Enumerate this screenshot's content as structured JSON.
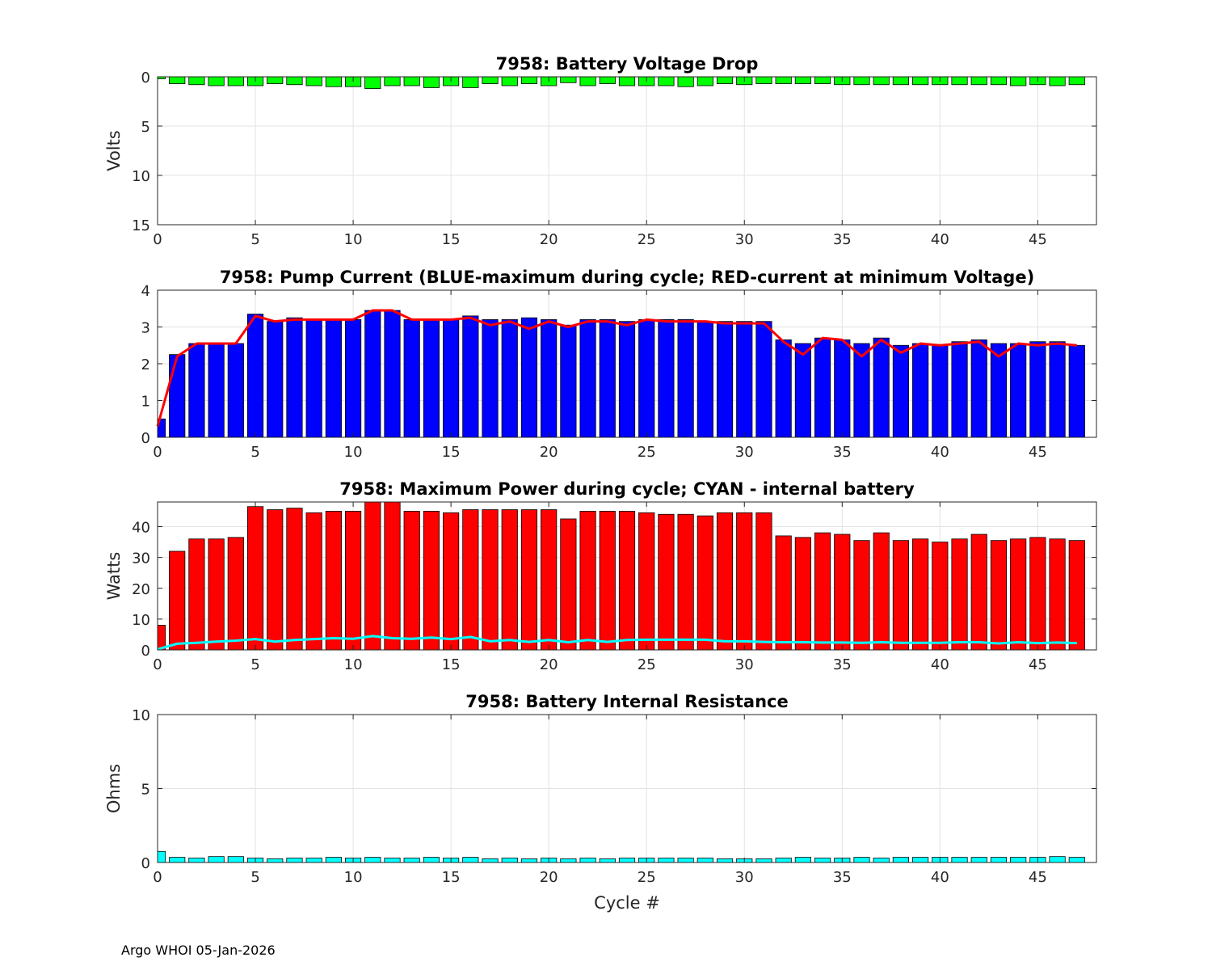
{
  "footer": "Argo WHOI 05-Jan-2026",
  "chart_data": [
    {
      "type": "bar",
      "title": "7958: Battery Voltage Drop",
      "ylabel": "Volts",
      "xlabel": "",
      "xlim": [
        0,
        48
      ],
      "ylim": [
        0,
        15
      ],
      "y_reversed": true,
      "xticks": [
        0,
        5,
        10,
        15,
        20,
        25,
        30,
        35,
        40,
        45
      ],
      "yticks": [
        0,
        5,
        10,
        15
      ],
      "grid": true,
      "bar_color": "#00ff00",
      "x": [
        0,
        1,
        2,
        3,
        4,
        5,
        6,
        7,
        8,
        9,
        10,
        11,
        12,
        13,
        14,
        15,
        16,
        17,
        18,
        19,
        20,
        21,
        22,
        23,
        24,
        25,
        26,
        27,
        28,
        29,
        30,
        31,
        32,
        33,
        34,
        35,
        36,
        37,
        38,
        39,
        40,
        41,
        42,
        43,
        44,
        45,
        46,
        47
      ],
      "values": [
        0.2,
        0.7,
        0.8,
        0.9,
        0.9,
        0.9,
        0.7,
        0.8,
        0.9,
        1.0,
        1.0,
        1.2,
        0.9,
        0.9,
        1.1,
        0.9,
        1.1,
        0.7,
        0.9,
        0.7,
        0.9,
        0.6,
        0.9,
        0.7,
        0.9,
        0.9,
        0.9,
        1.0,
        0.9,
        0.7,
        0.8,
        0.7,
        0.7,
        0.7,
        0.7,
        0.8,
        0.8,
        0.8,
        0.8,
        0.8,
        0.8,
        0.8,
        0.8,
        0.8,
        0.9,
        0.8,
        0.9,
        0.8
      ]
    },
    {
      "type": "bar",
      "title": "7958: Pump Current (BLUE-maximum during cycle; RED-current at minimum Voltage)",
      "ylabel": "",
      "xlabel": "",
      "xlim": [
        0,
        48
      ],
      "ylim": [
        0,
        4
      ],
      "xticks": [
        0,
        5,
        10,
        15,
        20,
        25,
        30,
        35,
        40,
        45
      ],
      "yticks": [
        0,
        1,
        2,
        3,
        4
      ],
      "grid": true,
      "bar_color": "#0000ff",
      "line_color": "#ff0000",
      "x": [
        0,
        1,
        2,
        3,
        4,
        5,
        6,
        7,
        8,
        9,
        10,
        11,
        12,
        13,
        14,
        15,
        16,
        17,
        18,
        19,
        20,
        21,
        22,
        23,
        24,
        25,
        26,
        27,
        28,
        29,
        30,
        31,
        32,
        33,
        34,
        35,
        36,
        37,
        38,
        39,
        40,
        41,
        42,
        43,
        44,
        45,
        46,
        47
      ],
      "series": [
        {
          "name": "BLUE-maximum during cycle",
          "values": [
            0.5,
            2.25,
            2.55,
            2.55,
            2.55,
            3.35,
            3.15,
            3.25,
            3.2,
            3.2,
            3.2,
            3.45,
            3.45,
            3.2,
            3.2,
            3.2,
            3.3,
            3.2,
            3.2,
            3.25,
            3.2,
            3.05,
            3.2,
            3.2,
            3.15,
            3.2,
            3.2,
            3.2,
            3.15,
            3.15,
            3.15,
            3.15,
            2.65,
            2.55,
            2.7,
            2.65,
            2.55,
            2.7,
            2.5,
            2.55,
            2.5,
            2.6,
            2.65,
            2.55,
            2.55,
            2.6,
            2.6,
            2.5
          ]
        },
        {
          "name": "RED-current at minimum Voltage",
          "values": [
            0.3,
            2.2,
            2.55,
            2.55,
            2.55,
            3.3,
            3.15,
            3.2,
            3.2,
            3.2,
            3.2,
            3.45,
            3.45,
            3.2,
            3.2,
            3.2,
            3.25,
            3.05,
            3.15,
            2.95,
            3.15,
            3.0,
            3.15,
            3.15,
            3.05,
            3.2,
            3.15,
            3.15,
            3.15,
            3.1,
            3.1,
            3.1,
            2.6,
            2.25,
            2.7,
            2.65,
            2.2,
            2.65,
            2.3,
            2.55,
            2.5,
            2.55,
            2.6,
            2.2,
            2.55,
            2.5,
            2.55,
            2.5
          ]
        }
      ]
    },
    {
      "type": "bar",
      "title": "7958: Maximum Power during cycle; CYAN - internal battery",
      "ylabel": "Watts",
      "xlabel": "",
      "xlim": [
        0,
        48
      ],
      "ylim": [
        0,
        48
      ],
      "xticks": [
        0,
        5,
        10,
        15,
        20,
        25,
        30,
        35,
        40,
        45
      ],
      "yticks": [
        0,
        10,
        20,
        30,
        40
      ],
      "grid": true,
      "bar_color": "#ff0000",
      "line_color": "#00ffff",
      "x": [
        0,
        1,
        2,
        3,
        4,
        5,
        6,
        7,
        8,
        9,
        10,
        11,
        12,
        13,
        14,
        15,
        16,
        17,
        18,
        19,
        20,
        21,
        22,
        23,
        24,
        25,
        26,
        27,
        28,
        29,
        30,
        31,
        32,
        33,
        34,
        35,
        36,
        37,
        38,
        39,
        40,
        41,
        42,
        43,
        44,
        45,
        46,
        47
      ],
      "series": [
        {
          "name": "Maximum Power during cycle",
          "values": [
            8,
            32,
            36,
            36,
            36.5,
            46.5,
            45.5,
            46,
            44.5,
            45,
            45,
            48,
            48,
            45,
            45,
            44.5,
            45.5,
            45.5,
            45.5,
            45.5,
            45.5,
            42.5,
            45,
            45,
            45,
            44.5,
            44,
            44,
            43.5,
            44.5,
            44.5,
            44.5,
            37,
            36.5,
            38,
            37.5,
            35.5,
            38,
            35.5,
            36,
            35,
            36,
            37.5,
            35.5,
            36,
            36.5,
            36,
            35.5
          ]
        },
        {
          "name": "CYAN - internal battery",
          "values": [
            0.2,
            2.0,
            2.3,
            2.7,
            3.0,
            3.5,
            2.7,
            3.2,
            3.5,
            3.8,
            3.6,
            4.5,
            3.8,
            3.6,
            4.0,
            3.5,
            4.2,
            2.8,
            3.2,
            2.6,
            3.2,
            2.5,
            3.2,
            2.6,
            3.2,
            3.3,
            3.3,
            3.3,
            3.3,
            2.8,
            2.8,
            2.6,
            2.5,
            2.5,
            2.4,
            2.4,
            2.3,
            2.5,
            2.3,
            2.3,
            2.3,
            2.5,
            2.5,
            2.1,
            2.5,
            2.2,
            2.4,
            2.2
          ]
        }
      ]
    },
    {
      "type": "bar",
      "title": "7958: Battery Internal Resistance",
      "ylabel": "Ohms",
      "xlabel": "Cycle #",
      "xlim": [
        0,
        48
      ],
      "ylim": [
        0,
        10
      ],
      "xticks": [
        0,
        5,
        10,
        15,
        20,
        25,
        30,
        35,
        40,
        45
      ],
      "yticks": [
        0,
        5,
        10
      ],
      "grid": true,
      "bar_color": "#00ffff",
      "x": [
        0,
        1,
        2,
        3,
        4,
        5,
        6,
        7,
        8,
        9,
        10,
        11,
        12,
        13,
        14,
        15,
        16,
        17,
        18,
        19,
        20,
        21,
        22,
        23,
        24,
        25,
        26,
        27,
        28,
        29,
        30,
        31,
        32,
        33,
        34,
        35,
        36,
        37,
        38,
        39,
        40,
        41,
        42,
        43,
        44,
        45,
        46,
        47
      ],
      "values": [
        0.75,
        0.35,
        0.3,
        0.4,
        0.4,
        0.3,
        0.25,
        0.3,
        0.3,
        0.35,
        0.3,
        0.35,
        0.3,
        0.3,
        0.35,
        0.3,
        0.35,
        0.25,
        0.3,
        0.25,
        0.3,
        0.25,
        0.3,
        0.25,
        0.3,
        0.3,
        0.3,
        0.3,
        0.3,
        0.25,
        0.25,
        0.25,
        0.3,
        0.35,
        0.3,
        0.3,
        0.35,
        0.3,
        0.35,
        0.35,
        0.35,
        0.35,
        0.35,
        0.35,
        0.35,
        0.35,
        0.4,
        0.35
      ]
    }
  ]
}
